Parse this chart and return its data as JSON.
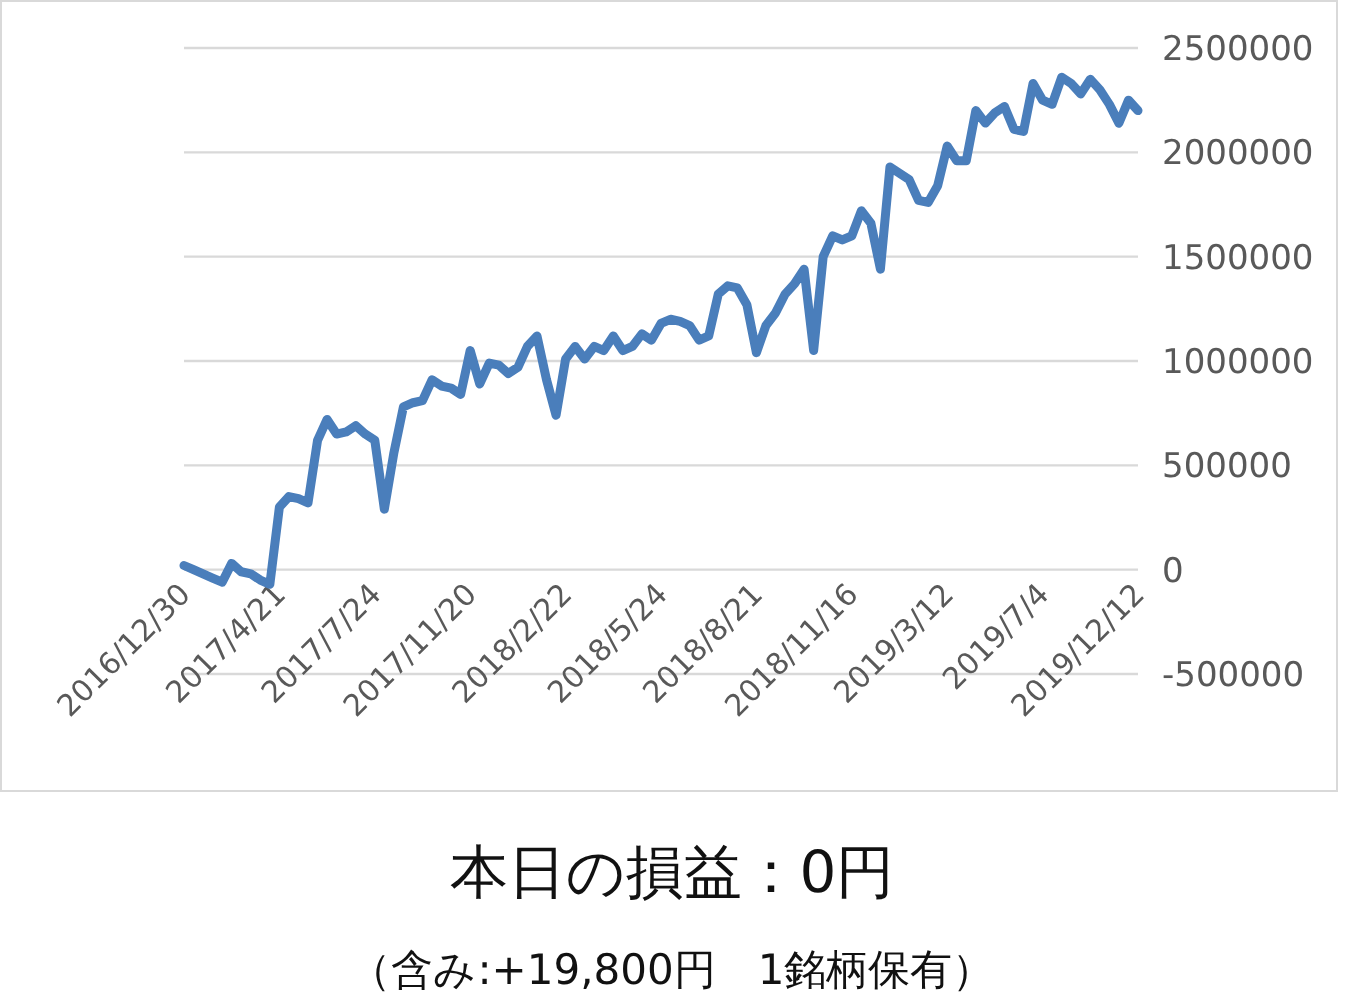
{
  "chart_data": {
    "type": "line",
    "title": "本日の損益：0円",
    "subtitle": "（含み:+19,800円　1銘柄保有）",
    "categories": [
      "2016/12/30",
      null,
      null,
      null,
      null,
      null,
      null,
      null,
      null,
      null,
      "2017/4/21",
      null,
      null,
      null,
      null,
      null,
      null,
      null,
      null,
      null,
      "2017/7/24",
      null,
      null,
      null,
      null,
      null,
      null,
      null,
      null,
      null,
      "2017/11/20",
      null,
      null,
      null,
      null,
      null,
      null,
      null,
      null,
      null,
      "2018/2/22",
      null,
      null,
      null,
      null,
      null,
      null,
      null,
      null,
      null,
      "2018/5/24",
      null,
      null,
      null,
      null,
      null,
      null,
      null,
      null,
      null,
      "2018/8/21",
      null,
      null,
      null,
      null,
      null,
      null,
      null,
      null,
      null,
      "2018/11/16",
      null,
      null,
      null,
      null,
      null,
      null,
      null,
      null,
      null,
      "2019/3/12",
      null,
      null,
      null,
      null,
      null,
      null,
      null,
      null,
      null,
      "2019/7/4",
      null,
      null,
      null,
      null,
      null,
      null,
      null,
      null,
      null,
      "2019/12/12"
    ],
    "series": [
      {
        "color": "#4a7ebb",
        "values": [
          20000,
          0,
          -20000,
          -40000,
          -60000,
          30000,
          -10000,
          -20000,
          -50000,
          -70000,
          300000,
          350000,
          340000,
          320000,
          620000,
          720000,
          650000,
          660000,
          690000,
          650000,
          620000,
          290000,
          560000,
          780000,
          800000,
          810000,
          910000,
          880000,
          870000,
          840000,
          1050000,
          890000,
          990000,
          980000,
          940000,
          970000,
          1070000,
          1120000,
          910000,
          740000,
          1010000,
          1070000,
          1010000,
          1070000,
          1050000,
          1120000,
          1050000,
          1070000,
          1130000,
          1100000,
          1180000,
          1200000,
          1190000,
          1170000,
          1100000,
          1120000,
          1320000,
          1360000,
          1350000,
          1270000,
          1040000,
          1170000,
          1230000,
          1320000,
          1370000,
          1440000,
          1050000,
          1500000,
          1600000,
          1580000,
          1600000,
          1720000,
          1660000,
          1440000,
          1930000,
          1900000,
          1870000,
          1770000,
          1760000,
          1840000,
          2030000,
          1960000,
          1960000,
          2200000,
          2140000,
          2190000,
          2220000,
          2110000,
          2100000,
          2330000,
          2250000,
          2230000,
          2360000,
          2330000,
          2280000,
          2350000,
          2300000,
          2230000,
          2140000,
          2250000,
          2200000
        ]
      }
    ],
    "ylim": [
      -500000,
      2500000
    ],
    "yticks": [
      -500000,
      0,
      500000,
      1000000,
      1500000,
      2000000,
      2500000
    ],
    "grid": "y",
    "marker": "none",
    "line_style": "solid"
  }
}
